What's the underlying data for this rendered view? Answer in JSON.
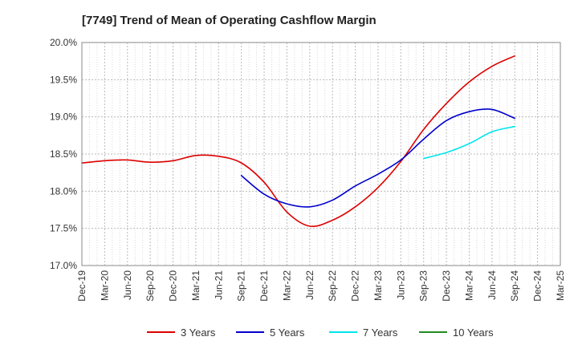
{
  "chart_data": {
    "type": "line",
    "title": "[7749]  Trend of Mean of Operating Cashflow Margin",
    "xlabel": "",
    "ylabel": "",
    "ylim": [
      17.0,
      20.0
    ],
    "y_ticks": [
      17.0,
      17.5,
      18.0,
      18.5,
      19.0,
      19.5,
      20.0
    ],
    "y_tick_labels": [
      "17.0%",
      "17.5%",
      "18.0%",
      "18.5%",
      "19.0%",
      "19.5%",
      "20.0%"
    ],
    "x_tick_labels": [
      "Dec-19",
      "Mar-20",
      "Jun-20",
      "Sep-20",
      "Dec-20",
      "Mar-21",
      "Jun-21",
      "Sep-21",
      "Dec-21",
      "Mar-22",
      "Jun-22",
      "Sep-22",
      "Dec-22",
      "Mar-23",
      "Jun-23",
      "Sep-23",
      "Dec-23",
      "Mar-24",
      "Jun-24",
      "Sep-24",
      "Dec-24",
      "Mar-25"
    ],
    "x_index_range": [
      0,
      21
    ],
    "grid": true,
    "legend_position": "bottom",
    "series": [
      {
        "name": "3 Years",
        "color": "#dd0000",
        "start_index": 0,
        "values": [
          18.38,
          18.41,
          18.42,
          18.39,
          18.41,
          18.48,
          18.47,
          18.38,
          18.12,
          17.72,
          17.53,
          17.61,
          17.79,
          18.05,
          18.4,
          18.83,
          19.18,
          19.47,
          19.68,
          19.82
        ]
      },
      {
        "name": "5 Years",
        "color": "#0000cc",
        "start_index": 7,
        "values": [
          18.21,
          17.96,
          17.83,
          17.79,
          17.88,
          18.07,
          18.23,
          18.42,
          18.7,
          18.95,
          19.07,
          19.1,
          18.98
        ]
      },
      {
        "name": "7 Years",
        "color": "#00e5ee",
        "start_index": 15,
        "values": [
          18.44,
          18.52,
          18.64,
          18.8,
          18.87
        ]
      },
      {
        "name": "10 Years",
        "color": "#228b22",
        "start_index": 0,
        "values": []
      }
    ]
  }
}
